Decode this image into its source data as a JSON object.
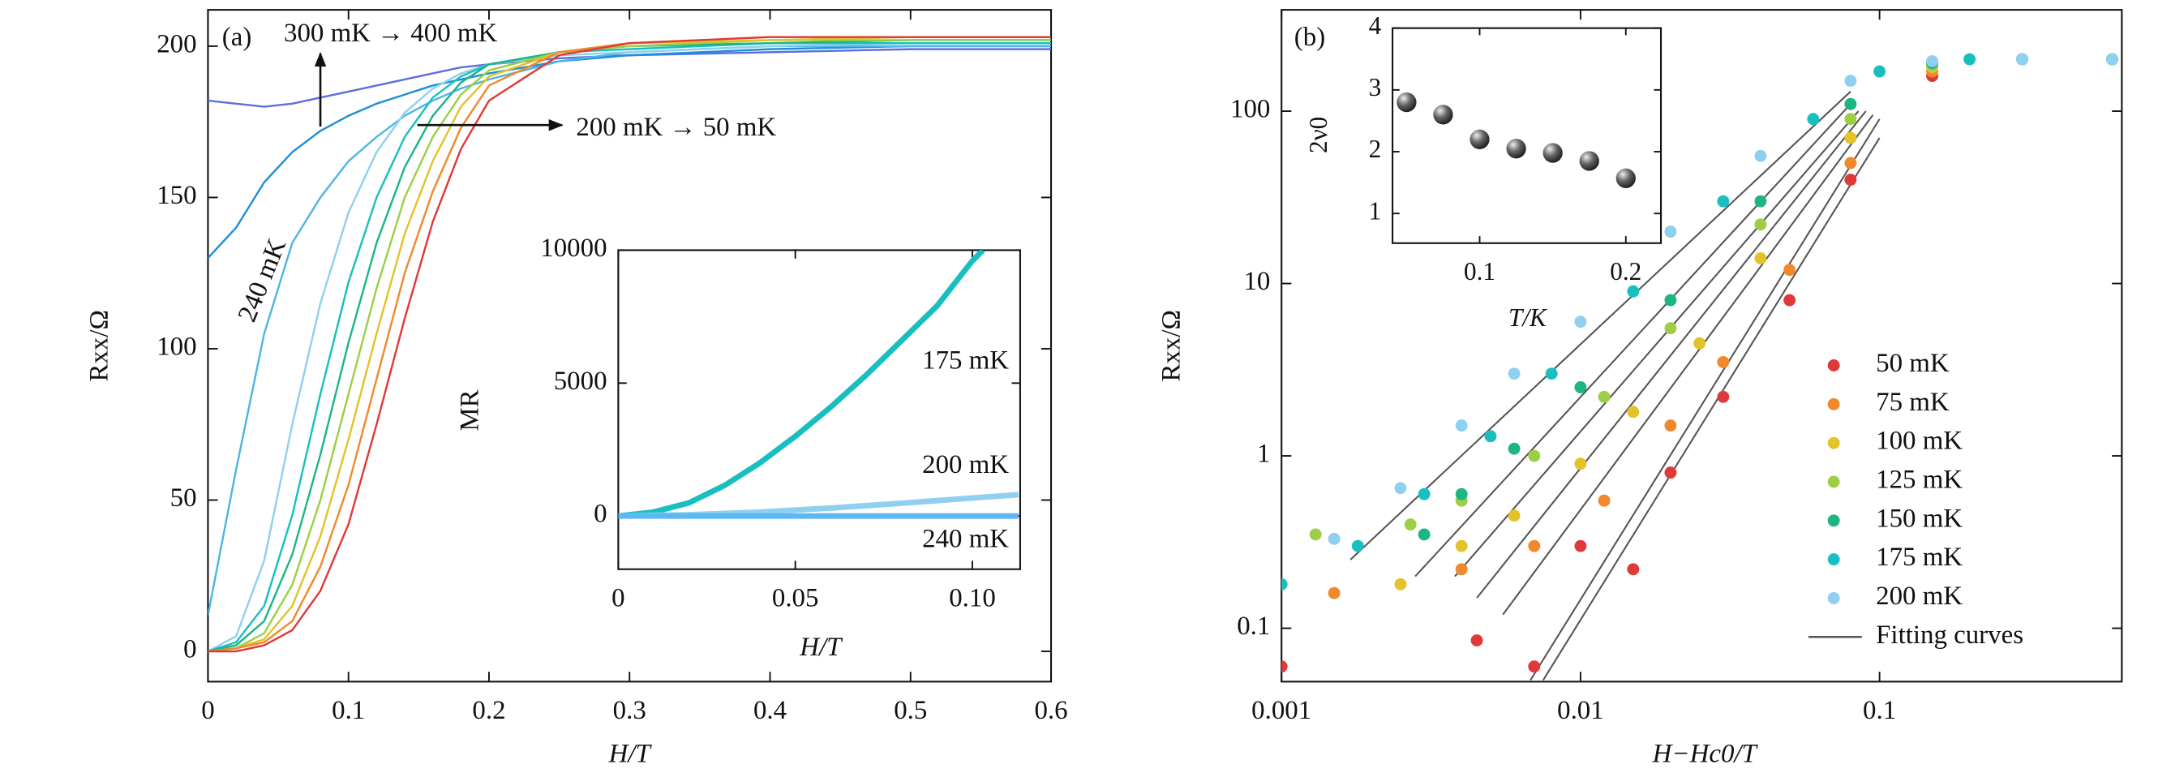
{
  "chart_data": [
    {
      "type": "line",
      "xlabel": "H/T",
      "ylabel": "Rxx/Ω",
      "xlim": [
        0,
        0.6
      ],
      "ylim": [
        -10,
        212
      ],
      "xticks": [
        0,
        0.1,
        0.2,
        0.3,
        0.4,
        0.5,
        0.6
      ],
      "yticks": [
        0,
        50,
        100,
        150,
        200
      ],
      "annotations": [
        "(a)",
        "300 mK → 400 mK",
        "200 mK → 50 mK",
        "240 mK"
      ],
      "x": [
        0,
        0.02,
        0.04,
        0.06,
        0.08,
        0.1,
        0.12,
        0.14,
        0.16,
        0.18,
        0.2,
        0.25,
        0.3,
        0.4,
        0.5,
        0.6
      ],
      "series": [
        {
          "color": "#5b6fe0",
          "values": [
            182,
            181,
            180,
            181,
            183,
            185,
            187,
            189,
            191,
            193,
            194,
            196,
            197,
            198,
            199,
            199
          ]
        },
        {
          "color": "#1f8fd6",
          "values": [
            130,
            140,
            155,
            165,
            172,
            177,
            181,
            184,
            187,
            189,
            191,
            195,
            197,
            199,
            200,
            200
          ]
        },
        {
          "color": "#4fb4e6",
          "values": [
            12,
            60,
            105,
            135,
            150,
            162,
            170,
            177,
            182,
            186,
            189,
            195,
            198,
            200,
            200,
            200
          ]
        },
        {
          "color": "#8fd0f0",
          "values": [
            0,
            5,
            30,
            75,
            115,
            145,
            165,
            178,
            186,
            191,
            194,
            197,
            198,
            200,
            201,
            201
          ]
        },
        {
          "color": "#19bfc0",
          "values": [
            0,
            3,
            15,
            45,
            85,
            122,
            150,
            170,
            183,
            190,
            194,
            198,
            199,
            201,
            201,
            201
          ]
        },
        {
          "color": "#1db584",
          "values": [
            0,
            2,
            10,
            32,
            65,
            102,
            135,
            160,
            177,
            188,
            194,
            198,
            200,
            201,
            202,
            202
          ]
        },
        {
          "color": "#9ccf45",
          "values": [
            0,
            1,
            6,
            22,
            50,
            85,
            120,
            150,
            170,
            184,
            192,
            198,
            200,
            202,
            202,
            202
          ]
        },
        {
          "color": "#e3c22a",
          "values": [
            0,
            1,
            4,
            15,
            38,
            70,
            105,
            138,
            162,
            180,
            190,
            198,
            201,
            202,
            203,
            203
          ]
        },
        {
          "color": "#f0892c",
          "values": [
            0,
            1,
            3,
            10,
            28,
            55,
            90,
            125,
            152,
            173,
            187,
            198,
            201,
            203,
            203,
            203
          ]
        },
        {
          "color": "#e0393a",
          "values": [
            0,
            0,
            2,
            7,
            20,
            42,
            75,
            110,
            142,
            166,
            182,
            197,
            201,
            203,
            203,
            203
          ]
        }
      ]
    },
    {
      "type": "line",
      "xlabel": "H/T",
      "ylabel": "MR",
      "xlim": [
        0,
        0.1135
      ],
      "ylim": [
        -2000,
        10000
      ],
      "xticks": [
        0,
        0.05,
        {
          "value": 0.1,
          "label": "0.10"
        }
      ],
      "yticks": [
        0,
        5000,
        10000
      ],
      "annotations": [
        "175 mK",
        "200 mK",
        "240 mK"
      ],
      "series": [
        {
          "color": "#19bfc0",
          "x": [
            0,
            0.01,
            0.02,
            0.03,
            0.04,
            0.05,
            0.06,
            0.07,
            0.08,
            0.09,
            0.1,
            0.103
          ],
          "values": [
            0,
            150,
            500,
            1150,
            2000,
            3000,
            4100,
            5300,
            6600,
            7900,
            9600,
            10000
          ]
        },
        {
          "color": "#8fd0f0",
          "x": [
            0,
            0.02,
            0.04,
            0.06,
            0.08,
            0.1,
            0.113
          ],
          "values": [
            0,
            50,
            150,
            300,
            480,
            680,
            800
          ]
        },
        {
          "color": "#5cb8f0",
          "x": [
            0,
            0.113
          ],
          "values": [
            0,
            0
          ]
        }
      ]
    },
    {
      "type": "scatter",
      "xlabel": "H−Hc0/T",
      "ylabel": "Rxx/Ω",
      "xscale": "log",
      "yscale": "log",
      "xlim": [
        0.001,
        0.646
      ],
      "ylim": [
        0.049,
        387
      ],
      "xticks": [
        0.001,
        0.01,
        0.1
      ],
      "yticks": [
        0.1,
        1,
        10,
        100
      ],
      "annotations": [
        "(b)"
      ],
      "legend": "lower right",
      "series": [
        {
          "name": "50 mK",
          "color": "#e0393a",
          "x": [
            0.001,
            0.0045,
            0.007,
            0.01,
            0.015,
            0.02,
            0.03,
            0.05,
            0.08,
            0.15,
            0.3,
            0.6
          ],
          "values": [
            0.06,
            0.085,
            0.06,
            0.3,
            0.22,
            0.8,
            2.2,
            8,
            40,
            160,
            200,
            200
          ]
        },
        {
          "name": "75 mK",
          "color": "#f0892c",
          "x": [
            0.0015,
            0.004,
            0.007,
            0.012,
            0.02,
            0.03,
            0.05,
            0.08,
            0.15,
            0.3,
            0.6
          ],
          "values": [
            0.16,
            0.22,
            0.3,
            0.55,
            1.5,
            3.5,
            12,
            50,
            170,
            200,
            200
          ]
        },
        {
          "name": "100 mK",
          "color": "#e3c22a",
          "x": [
            0.0025,
            0.004,
            0.006,
            0.01,
            0.015,
            0.025,
            0.04,
            0.08,
            0.15,
            0.3,
            0.6
          ],
          "values": [
            0.18,
            0.3,
            0.45,
            0.9,
            1.8,
            4.5,
            14,
            70,
            180,
            200,
            200
          ]
        },
        {
          "name": "125 mK",
          "color": "#9ccf45",
          "x": [
            0.0013,
            0.0027,
            0.004,
            0.007,
            0.012,
            0.02,
            0.04,
            0.08,
            0.15,
            0.3,
            0.6
          ],
          "values": [
            0.35,
            0.4,
            0.55,
            1,
            2.2,
            5.5,
            22,
            90,
            185,
            200,
            200
          ]
        },
        {
          "name": "150 mK",
          "color": "#1db584",
          "x": [
            0.003,
            0.004,
            0.006,
            0.01,
            0.02,
            0.04,
            0.08,
            0.15,
            0.3,
            0.6
          ],
          "values": [
            0.35,
            0.6,
            1.1,
            2.5,
            8,
            30,
            110,
            190,
            200,
            200
          ]
        },
        {
          "name": "175 mK",
          "color": "#19bfc0",
          "x": [
            0.001,
            0.0018,
            0.003,
            0.005,
            0.008,
            0.015,
            0.03,
            0.06,
            0.1,
            0.2,
            0.6
          ],
          "values": [
            0.18,
            0.3,
            0.6,
            1.3,
            3,
            9,
            30,
            90,
            170,
            200,
            200
          ]
        },
        {
          "name": "200 mK",
          "color": "#8fd0f0",
          "x": [
            0.0015,
            0.0025,
            0.004,
            0.006,
            0.01,
            0.02,
            0.04,
            0.08,
            0.15,
            0.3,
            0.6
          ],
          "values": [
            0.33,
            0.65,
            1.5,
            3,
            6,
            20,
            55,
            150,
            195,
            200,
            200
          ]
        }
      ],
      "fitting_curves": {
        "name": "Fitting curves",
        "color": "#555555",
        "lines": [
          {
            "x": [
              0.0075,
              0.1
            ],
            "values": [
              0.05,
              70
            ]
          },
          {
            "x": [
              0.0068,
              0.1
            ],
            "values": [
              0.05,
              90
            ]
          },
          {
            "x": [
              0.0055,
              0.095
            ],
            "values": [
              0.12,
              95
            ]
          },
          {
            "x": [
              0.0045,
              0.09
            ],
            "values": [
              0.15,
              100
            ]
          },
          {
            "x": [
              0.0038,
              0.085
            ],
            "values": [
              0.2,
              100
            ]
          },
          {
            "x": [
              0.0028,
              0.08
            ],
            "values": [
              0.2,
              110
            ]
          },
          {
            "x": [
              0.0017,
              0.08
            ],
            "values": [
              0.25,
              130
            ]
          }
        ]
      }
    },
    {
      "type": "scatter",
      "xlabel": "T/K",
      "ylabel": "2ν0",
      "xlim": [
        0.0404,
        0.224
      ],
      "ylim": [
        0.52,
        4
      ],
      "xticks": [
        0.1,
        0.2
      ],
      "yticks": [
        1,
        2,
        3,
        4
      ],
      "series": [
        {
          "color": "#555555",
          "x": [
            0.05,
            0.075,
            0.1,
            0.125,
            0.15,
            0.175,
            0.2
          ],
          "values": [
            2.8,
            2.6,
            2.2,
            2.05,
            1.98,
            1.85,
            1.57
          ]
        }
      ]
    }
  ]
}
